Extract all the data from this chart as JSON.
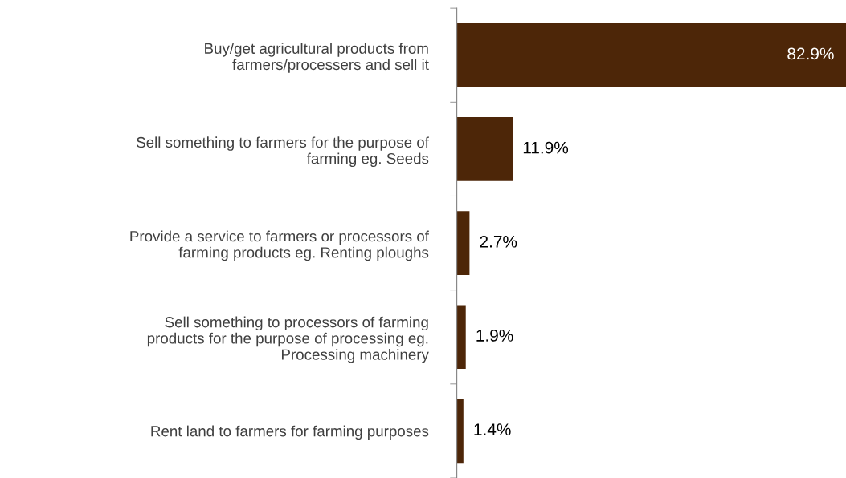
{
  "chart_data": {
    "type": "bar",
    "orientation": "horizontal",
    "categories": [
      "Buy/get agricultural products from\nfarmers/processers and sell it",
      "Sell something to farmers for the purpose of\nfarming eg. Seeds",
      "Provide a service to farmers or processors of\nfarming products eg. Renting ploughs",
      "Sell something to processors of farming\nproducts for the purpose of processing eg.\nProcessing machinery",
      "Rent land to farmers for farming purposes"
    ],
    "values": [
      82.9,
      11.9,
      2.7,
      1.9,
      1.4
    ],
    "value_labels": [
      "82.9%",
      "11.9%",
      "2.7%",
      "1.9%",
      "1.4%"
    ],
    "color": "#4d2608",
    "xlim": [
      0,
      82.9
    ],
    "tick_labels": "y",
    "grid": false,
    "legend": false
  }
}
